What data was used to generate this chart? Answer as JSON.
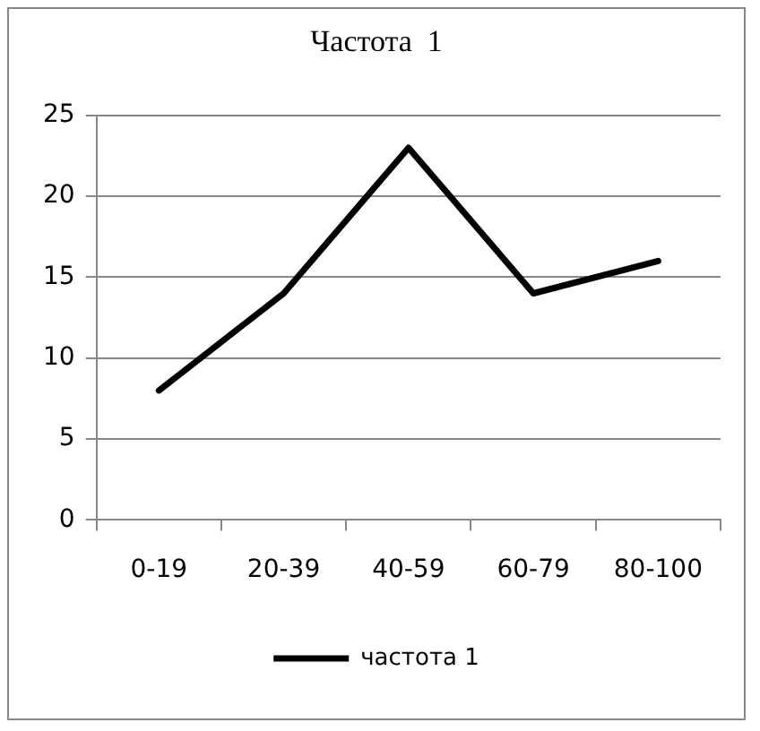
{
  "chart_data": {
    "type": "line",
    "title": "Частота  1",
    "categories": [
      "0-19",
      "20-39",
      "40-59",
      "60-79",
      "80-100"
    ],
    "series": [
      {
        "name": "частота 1",
        "color": "#000000",
        "values": [
          8,
          14,
          23,
          14,
          16
        ]
      }
    ],
    "ylim": [
      0,
      25
    ],
    "yticks": [
      0,
      5,
      10,
      15,
      20,
      25
    ],
    "grid": "y",
    "legend": "bottom",
    "marker": "none",
    "line_style": "solid"
  }
}
